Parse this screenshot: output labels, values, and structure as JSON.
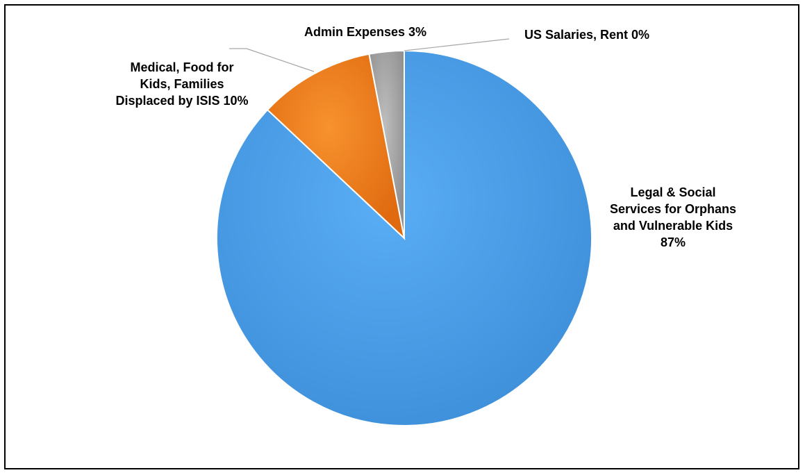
{
  "chart_data": {
    "type": "pie",
    "title": "",
    "slices": [
      {
        "name": "Legal & Social Services for Orphans and Vulnerable Kids",
        "value": 87,
        "label_lines": [
          "Legal & Social",
          "Services for Orphans",
          "and Vulnerable Kids",
          "87%"
        ],
        "color": "#4a9fe8"
      },
      {
        "name": "Medical, Food for Kids, Families Displaced by ISIS",
        "value": 10,
        "label_lines": [
          "Medical, Food for",
          "Kids, Families",
          "Displaced by ISIS 10%"
        ],
        "color": "#f07d1c"
      },
      {
        "name": "Admin Expenses",
        "value": 3,
        "label_lines": [
          "Admin Expenses 3%"
        ],
        "color": "#a6a6a6"
      },
      {
        "name": "US Salaries, Rent",
        "value": 0,
        "label_lines": [
          "US Salaries, Rent 0%"
        ],
        "color": "#4472c4"
      }
    ],
    "start": "top",
    "legend": "none",
    "data_labels": "outside"
  }
}
